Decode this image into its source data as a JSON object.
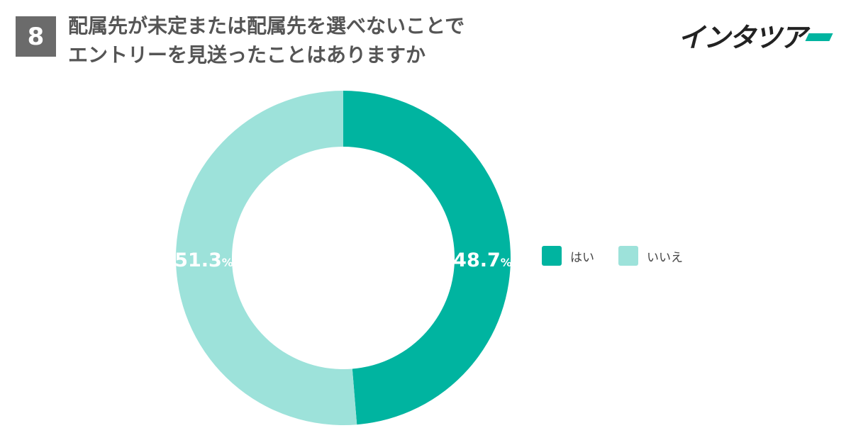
{
  "question": {
    "number": "8",
    "title_line1": "配属先が未定または配属先を選べないことで",
    "title_line2": "エントリーを見送ったことはありますか"
  },
  "logo": {
    "text": "インタツア",
    "accent_color": "#00b4a0"
  },
  "chart_data": {
    "type": "pie",
    "variant": "donut",
    "categories": [
      "はい",
      "いいえ"
    ],
    "values": [
      48.7,
      51.3
    ],
    "value_labels": [
      "48.7",
      "51.3"
    ],
    "unit": "%",
    "colors": [
      "#00b4a0",
      "#9de2da"
    ],
    "legend_position": "right"
  }
}
